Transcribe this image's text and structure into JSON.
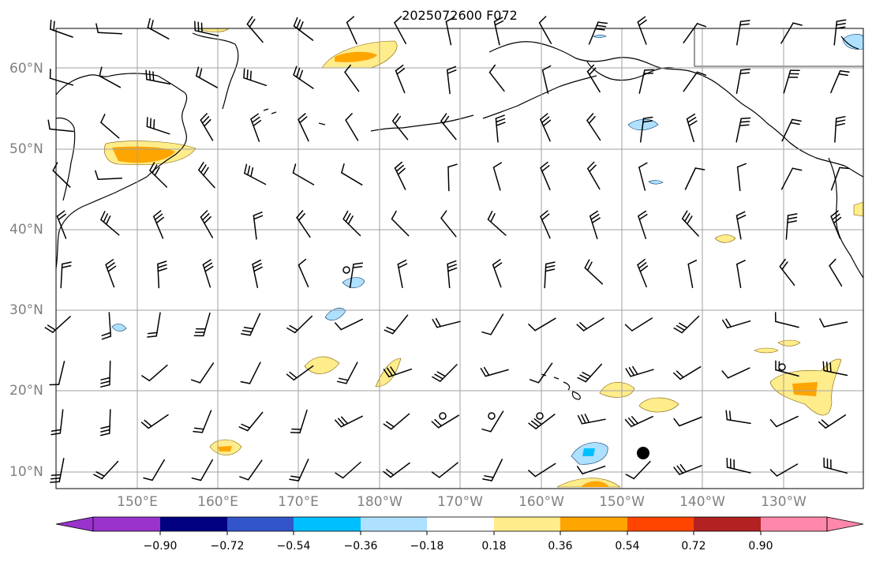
{
  "title": "2025072600 F072",
  "map": {
    "lat_labels": [
      "60°N",
      "50°N",
      "40°N",
      "30°N",
      "20°N",
      "10°N"
    ],
    "lon_labels": [
      "150°E",
      "160°E",
      "170°E",
      "180°W",
      "170°W",
      "160°W",
      "150°W",
      "140°W",
      "130°W"
    ],
    "features": {
      "coastline": "coastline-icon",
      "wind_barbs": "wind-barb-icon",
      "station_open": "open-circle-icon",
      "station_filled": "filled-circle-icon"
    }
  },
  "colorbar": {
    "tick_labels": [
      "−0.90",
      "−0.72",
      "−0.54",
      "−0.36",
      "−0.18",
      "0.18",
      "0.36",
      "0.54",
      "0.72",
      "0.90"
    ],
    "colors": [
      "#9933cc",
      "#000080",
      "#3355cc",
      "#00bfff",
      "#aee0ff",
      "#ffffff",
      "#ffec8b",
      "#ffa500",
      "#ff4500",
      "#b22222",
      "#ff88aa"
    ]
  },
  "shading_colors": {
    "pos1": "#ffec8b",
    "pos2": "#ffa500",
    "neg1": "#aee0ff",
    "neg2": "#00bfff"
  }
}
